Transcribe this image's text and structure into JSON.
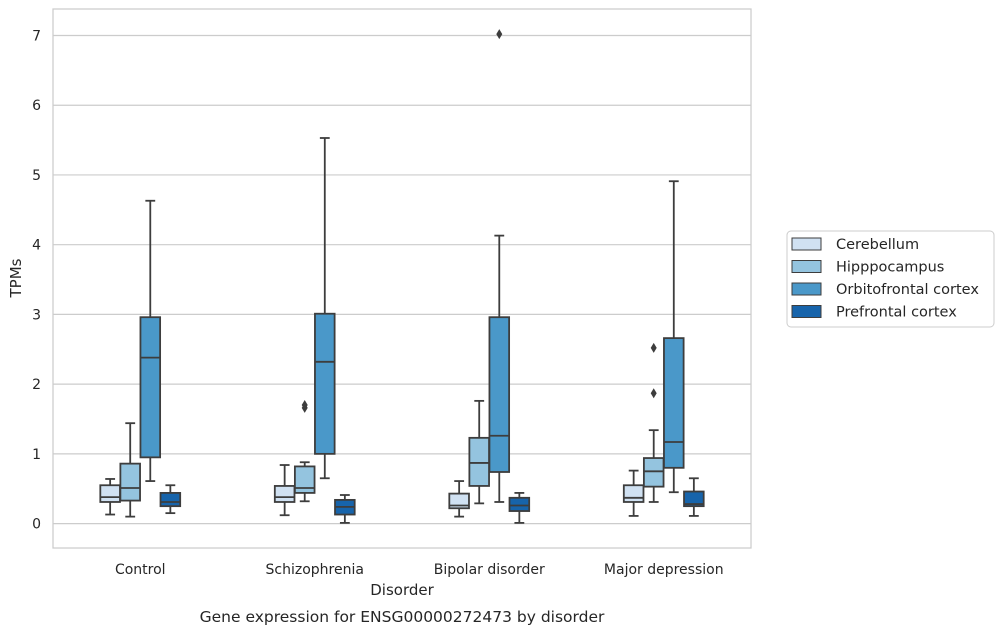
{
  "chart_data": {
    "type": "boxplot",
    "caption": "Gene expression for ENSG00000272473 by disorder",
    "xlabel": "Disorder",
    "ylabel": "TPMs",
    "ylim": [
      -0.35,
      7.38
    ],
    "yticks": [
      "0",
      "1",
      "2",
      "3",
      "4",
      "5",
      "6",
      "7"
    ],
    "grid": "horizontal",
    "legend_position": "right",
    "categories": [
      "Control",
      "Schizophrenia",
      "Bipolar disorder",
      "Major depression"
    ],
    "series": [
      {
        "name": "Cerebellum",
        "color": "#d0e1f2",
        "boxes": [
          {
            "whislo": 0.13,
            "q1": 0.31,
            "med": 0.38,
            "q3": 0.55,
            "whishi": 0.64,
            "fliers": []
          },
          {
            "whislo": 0.12,
            "q1": 0.31,
            "med": 0.38,
            "q3": 0.54,
            "whishi": 0.84,
            "fliers": []
          },
          {
            "whislo": 0.1,
            "q1": 0.22,
            "med": 0.26,
            "q3": 0.43,
            "whishi": 0.61,
            "fliers": []
          },
          {
            "whislo": 0.11,
            "q1": 0.31,
            "med": 0.37,
            "q3": 0.55,
            "whishi": 0.76,
            "fliers": []
          }
        ]
      },
      {
        "name": "Hipppocampus",
        "color": "#94c4df",
        "boxes": [
          {
            "whislo": 0.1,
            "q1": 0.33,
            "med": 0.51,
            "q3": 0.86,
            "whishi": 1.44,
            "fliers": []
          },
          {
            "whislo": 0.32,
            "q1": 0.44,
            "med": 0.51,
            "q3": 0.82,
            "whishi": 0.88,
            "fliers": [
              1.66,
              1.7
            ]
          },
          {
            "whislo": 0.29,
            "q1": 0.54,
            "med": 0.87,
            "q3": 1.23,
            "whishi": 1.76,
            "fliers": []
          },
          {
            "whislo": 0.31,
            "q1": 0.53,
            "med": 0.75,
            "q3": 0.94,
            "whishi": 1.34,
            "fliers": [
              1.87,
              2.52
            ]
          }
        ]
      },
      {
        "name": "Orbitofrontal cortex",
        "color": "#4a98c9",
        "boxes": [
          {
            "whislo": 0.61,
            "q1": 0.95,
            "med": 2.38,
            "q3": 2.96,
            "whishi": 4.63,
            "fliers": []
          },
          {
            "whislo": 0.65,
            "q1": 1.0,
            "med": 2.32,
            "q3": 3.01,
            "whishi": 5.53,
            "fliers": []
          },
          {
            "whislo": 0.31,
            "q1": 0.74,
            "med": 1.26,
            "q3": 2.96,
            "whishi": 4.13,
            "fliers": [
              7.02
            ]
          },
          {
            "whislo": 0.45,
            "q1": 0.8,
            "med": 1.17,
            "q3": 2.66,
            "whishi": 4.91,
            "fliers": []
          }
        ]
      },
      {
        "name": "Prefrontal cortex",
        "color": "#1764ab",
        "boxes": [
          {
            "whislo": 0.15,
            "q1": 0.25,
            "med": 0.31,
            "q3": 0.44,
            "whishi": 0.55,
            "fliers": []
          },
          {
            "whislo": 0.01,
            "q1": 0.13,
            "med": 0.24,
            "q3": 0.34,
            "whishi": 0.41,
            "fliers": []
          },
          {
            "whislo": 0.01,
            "q1": 0.18,
            "med": 0.26,
            "q3": 0.37,
            "whishi": 0.44,
            "fliers": []
          },
          {
            "whislo": 0.11,
            "q1": 0.25,
            "med": 0.28,
            "q3": 0.46,
            "whishi": 0.65,
            "fliers": []
          }
        ]
      }
    ]
  }
}
